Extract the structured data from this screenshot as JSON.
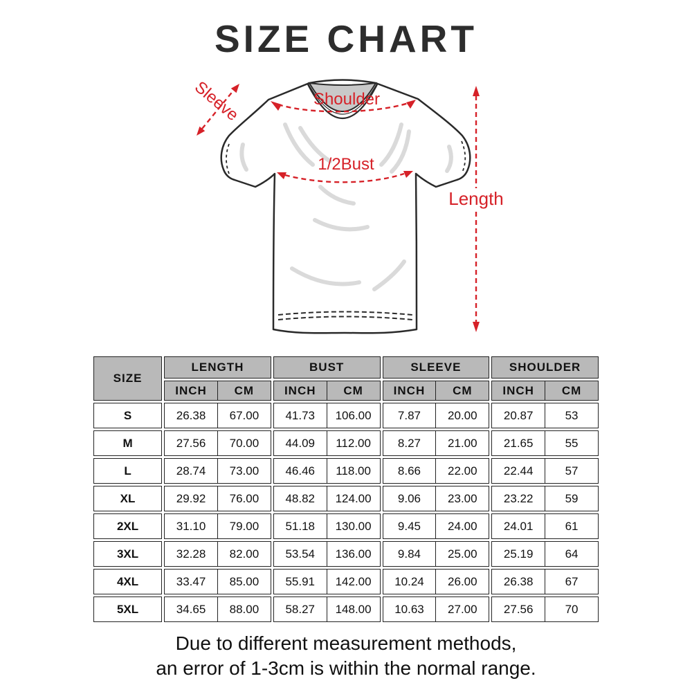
{
  "title": "SIZE CHART",
  "diagram": {
    "accent_color": "#d62128",
    "labels": {
      "sleeve": "Sleeve",
      "shoulder": "Shoulder",
      "half_bust": "1/2Bust",
      "length": "Length"
    }
  },
  "table": {
    "corner_header": "SIZE",
    "groups": [
      "LENGTH",
      "BUST",
      "SLEEVE",
      "SHOULDER"
    ],
    "subheaders": [
      "INCH",
      "CM"
    ],
    "rows": [
      {
        "size": "S",
        "values": [
          "26.38",
          "67.00",
          "41.73",
          "106.00",
          "7.87",
          "20.00",
          "20.87",
          "53"
        ]
      },
      {
        "size": "M",
        "values": [
          "27.56",
          "70.00",
          "44.09",
          "112.00",
          "8.27",
          "21.00",
          "21.65",
          "55"
        ]
      },
      {
        "size": "L",
        "values": [
          "28.74",
          "73.00",
          "46.46",
          "118.00",
          "8.66",
          "22.00",
          "22.44",
          "57"
        ]
      },
      {
        "size": "XL",
        "values": [
          "29.92",
          "76.00",
          "48.82",
          "124.00",
          "9.06",
          "23.00",
          "23.22",
          "59"
        ]
      },
      {
        "size": "2XL",
        "values": [
          "31.10",
          "79.00",
          "51.18",
          "130.00",
          "9.45",
          "24.00",
          "24.01",
          "61"
        ]
      },
      {
        "size": "3XL",
        "values": [
          "32.28",
          "82.00",
          "53.54",
          "136.00",
          "9.84",
          "25.00",
          "25.19",
          "64"
        ]
      },
      {
        "size": "4XL",
        "values": [
          "33.47",
          "85.00",
          "55.91",
          "142.00",
          "10.24",
          "26.00",
          "26.38",
          "67"
        ]
      },
      {
        "size": "5XL",
        "values": [
          "34.65",
          "88.00",
          "58.27",
          "148.00",
          "10.63",
          "27.00",
          "27.56",
          "70"
        ]
      }
    ]
  },
  "footer": {
    "line1": "Due to different measurement methods,",
    "line2": "an error of 1-3cm is within the normal range."
  }
}
